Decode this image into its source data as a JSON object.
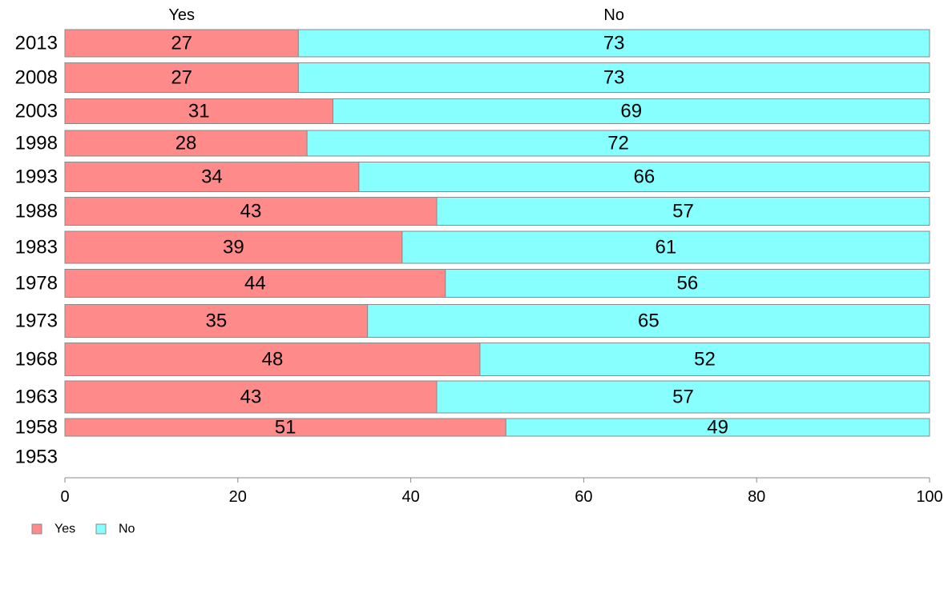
{
  "chart_data": {
    "type": "bar",
    "orientation": "horizontal",
    "stacked": true,
    "categories": [
      "2013",
      "2008",
      "2003",
      "1998",
      "1993",
      "1988",
      "1983",
      "1978",
      "1973",
      "1968",
      "1963",
      "1958",
      "1953"
    ],
    "series": [
      {
        "name": "Yes",
        "color": "#ff8a8a",
        "values": [
          27,
          27,
          31,
          28,
          34,
          43,
          39,
          44,
          35,
          48,
          43,
          51,
          null
        ]
      },
      {
        "name": "No",
        "color": "#88ffff",
        "values": [
          73,
          73,
          69,
          72,
          66,
          57,
          61,
          56,
          65,
          52,
          57,
          49,
          null
        ]
      }
    ],
    "column_headers": [
      "Yes",
      "No"
    ],
    "xlim": [
      0,
      100
    ],
    "x_ticks": [
      0,
      20,
      40,
      60,
      80,
      100
    ],
    "grid": false,
    "legend_position": "bottom-left",
    "title": "",
    "xlabel": "",
    "ylabel": ""
  }
}
